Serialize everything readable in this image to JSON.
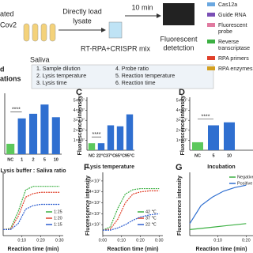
{
  "workflow": {
    "left_fragment": [
      "ated",
      "Cov2"
    ],
    "sample": "Saliva",
    "load": [
      "Directly load",
      "lysate"
    ],
    "time": "10 min",
    "mix": "RT-RPA+CRISPR mix",
    "readout": [
      "Fluorescent",
      "detetction"
    ]
  },
  "legend": [
    [
      "Cas12a"
    ],
    [
      "Guide RNA"
    ],
    [
      "Fluorescent",
      "probe"
    ],
    [
      "Reverse",
      "transcriptase"
    ],
    [
      "RPA primers"
    ],
    [
      "RPA enzymes"
    ]
  ],
  "optimizations": {
    "label": [
      "d",
      "ations"
    ],
    "steps": [
      "1. Sample dilution",
      "2. Lysis temperature",
      "3. Lysis time",
      "4. Probe ratio",
      "5. Reaction temperature",
      "6. Reaction time"
    ]
  },
  "chart_data": [
    {
      "type": "bar",
      "categories": [
        "NC",
        "1",
        "2",
        "5",
        "10"
      ],
      "values": [
        9000000,
        31000000,
        35000000,
        43000000,
        32000000
      ],
      "colors": [
        "#5cc85c",
        "#2f6fd0",
        "#2f6fd0",
        "#2f6fd0",
        "#2f6fd0"
      ],
      "xlabel": "Lysis buffer : Saliva ratio",
      "significance": "****",
      "ylim": [
        0,
        50000000
      ]
    },
    {
      "type": "bar",
      "panel": "C",
      "categories": [
        "NC",
        "22°C",
        "37°C",
        "65°C",
        "95°C"
      ],
      "values": [
        7000000,
        7000000,
        25000000,
        24000000,
        36000000
      ],
      "colors": [
        "#5cc85c",
        "#2f6fd0",
        "#2f6fd0",
        "#2f6fd0",
        "#2f6fd0"
      ],
      "xlabel": "Lysis temperature",
      "ylabel": "Fluorescence intensity",
      "significance": "****",
      "ylim": [
        0,
        50000000
      ],
      "yticks": [
        {
          "value": 10000000,
          "label": "1×10⁷"
        },
        {
          "value": 20000000,
          "label": "2×10⁷"
        },
        {
          "value": 30000000,
          "label": "3×10⁷"
        },
        {
          "value": 40000000,
          "label": "4×10⁷"
        },
        {
          "value": 50000000,
          "label": "5×10⁷"
        }
      ]
    },
    {
      "type": "bar",
      "panel": "D",
      "categories": [
        "NC",
        "5",
        "10"
      ],
      "values": [
        8000000,
        25000000,
        28000000
      ],
      "colors": [
        "#5cc85c",
        "#2f6fd0",
        "#2f6fd0"
      ],
      "xlabel": "Incubation",
      "ylabel": "Fluorescence intensity",
      "significance": "****",
      "ylim": [
        0,
        50000000
      ],
      "yticks": [
        {
          "value": 10000000,
          "label": "1×10⁷"
        },
        {
          "value": 20000000,
          "label": "2×10⁷"
        },
        {
          "value": 30000000,
          "label": "3×10⁷"
        },
        {
          "value": 40000000,
          "label": "4×10⁷"
        },
        {
          "value": 50000000,
          "label": "5×10⁷"
        }
      ]
    },
    {
      "type": "line",
      "x": [
        0,
        4,
        8,
        12,
        16,
        20,
        25,
        30
      ],
      "xlim": [
        0,
        32
      ],
      "xticks": [
        {
          "value": 10,
          "label": "0:10"
        },
        {
          "value": 20,
          "label": "0:20"
        },
        {
          "value": 30,
          "label": "0:30"
        }
      ],
      "ylim": [
        0,
        50000000
      ],
      "xlabel": "Reaction time (min)",
      "series": [
        {
          "name": "1:25",
          "color": "#3cb043",
          "values": [
            5000000,
            6000000,
            20000000,
            38000000,
            41000000,
            41000000,
            41000000,
            41000000
          ]
        },
        {
          "name": "1:20",
          "color": "#e0402a",
          "values": [
            5000000,
            5500000,
            16000000,
            32000000,
            35000000,
            36000000,
            36000000,
            36000000
          ]
        },
        {
          "name": "1:15",
          "color": "#2f5fd0",
          "values": [
            5000000,
            5000000,
            10000000,
            22000000,
            25000000,
            26000000,
            26000000,
            26000000
          ]
        }
      ]
    },
    {
      "type": "line",
      "panel": "F",
      "x": [
        0,
        4,
        8,
        12,
        16,
        20,
        25,
        30
      ],
      "xlim": [
        0,
        32
      ],
      "xticks": [
        {
          "value": 0,
          "label": "0:00"
        },
        {
          "value": 10,
          "label": "0:10"
        },
        {
          "value": 20,
          "label": "0:20"
        },
        {
          "value": 30,
          "label": "0:30"
        }
      ],
      "ylim": [
        0,
        55000000
      ],
      "yticks": [
        {
          "value": 10000000,
          "label": "1×10⁷"
        },
        {
          "value": 20000000,
          "label": "2×10⁷"
        },
        {
          "value": 30000000,
          "label": "3×10⁷"
        },
        {
          "value": 40000000,
          "label": "4×10⁷"
        },
        {
          "value": 50000000,
          "label": "5×10⁷"
        }
      ],
      "xlabel": "Reaction time (min)",
      "ylabel": "Fluorescence intensity",
      "series": [
        {
          "name": "42 ℃",
          "color": "#3cb043",
          "values": [
            5000000,
            8000000,
            25000000,
            38000000,
            42000000,
            43000000,
            43000000,
            43000000
          ]
        },
        {
          "name": "37 ℃",
          "color": "#e0402a",
          "values": [
            5000000,
            6000000,
            15000000,
            30000000,
            38000000,
            40000000,
            41000000,
            41000000
          ]
        },
        {
          "name": "22 ℃",
          "color": "#2f5fd0",
          "values": [
            5000000,
            5000000,
            7000000,
            10000000,
            14000000,
            17000000,
            19000000,
            20000000
          ]
        }
      ]
    },
    {
      "type": "line",
      "panel": "G",
      "x": [
        0,
        4,
        8,
        12,
        16,
        20
      ],
      "xlim": [
        0,
        23
      ],
      "xticks": [
        {
          "value": 10,
          "label": "0:10"
        },
        {
          "value": 20,
          "label": "0:20"
        }
      ],
      "ylim": [
        0,
        50000000
      ],
      "xlabel": "Reaction time (min)",
      "ylabel": "Fluorescence intensity",
      "series": [
        {
          "name": "Negative",
          "color": "#3cb043",
          "values": [
            5000000,
            6000000,
            7000000,
            8000000,
            9000000,
            10000000
          ]
        },
        {
          "name": "Positive",
          "color": "#2f6fd0",
          "values": [
            10000000,
            25000000,
            32000000,
            37000000,
            40000000,
            42000000
          ]
        }
      ]
    }
  ]
}
